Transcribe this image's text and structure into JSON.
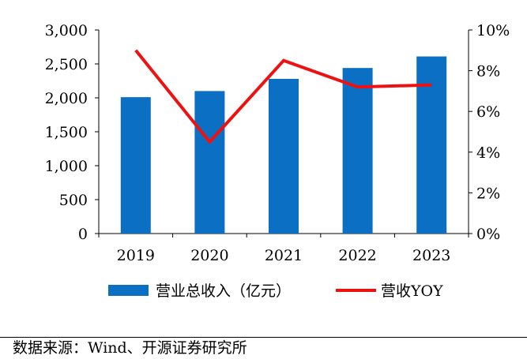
{
  "chart_data": {
    "type": "bar+line",
    "categories": [
      "2019",
      "2020",
      "2021",
      "2022",
      "2023"
    ],
    "series": [
      {
        "name": "营业总收入（亿元）",
        "type": "bar",
        "axis": "left",
        "values": [
          2010,
          2100,
          2280,
          2440,
          2610
        ],
        "color": "#0b6fc4"
      },
      {
        "name": "营收YOY",
        "type": "line",
        "axis": "right",
        "values": [
          9.0,
          4.5,
          8.5,
          7.2,
          7.3
        ],
        "color": "#ee1111"
      }
    ],
    "y_left": {
      "min": 0,
      "max": 3000,
      "step": 500,
      "tick_labels": [
        "0",
        "500",
        "1,000",
        "1,500",
        "2,000",
        "2,500",
        "3,000"
      ]
    },
    "y_right": {
      "min": 0,
      "max": 10,
      "step": 2,
      "tick_labels": [
        "0%",
        "2%",
        "4%",
        "6%",
        "8%",
        "10%"
      ]
    },
    "grid": false,
    "legend_position": "bottom"
  },
  "source_text": "数据来源：Wind、开源证券研究所"
}
